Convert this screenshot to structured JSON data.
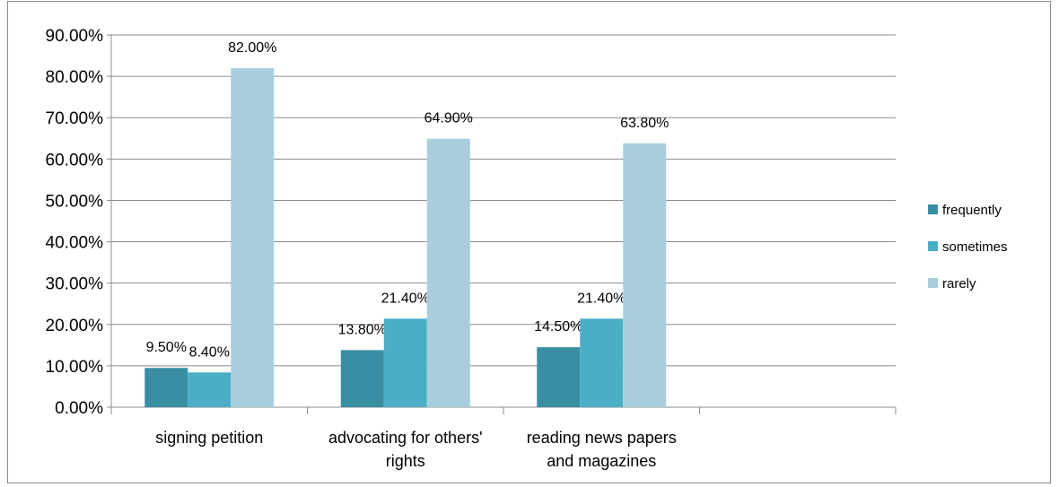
{
  "chart_data": {
    "type": "bar",
    "categories": [
      [
        "signing petition"
      ],
      [
        "advocating for others'",
        "rights"
      ],
      [
        "reading news papers",
        "and magazines"
      ],
      [
        ""
      ]
    ],
    "series": [
      {
        "name": "frequently",
        "color": "#3a8ea3",
        "values": [
          9.5,
          13.8,
          14.5,
          null
        ],
        "labels": [
          "9.50%",
          "13.80%",
          "14.50%",
          ""
        ]
      },
      {
        "name": "sometimes",
        "color": "#4baec6",
        "values": [
          8.4,
          21.4,
          21.4,
          null
        ],
        "labels": [
          "8.40%",
          "21.40%",
          "21.40%",
          ""
        ]
      },
      {
        "name": "rarely",
        "color": "#a8cedd",
        "values": [
          82.0,
          64.9,
          63.8,
          null
        ],
        "labels": [
          "82.00%",
          "64.90%",
          "63.80%",
          ""
        ]
      }
    ],
    "ylim": [
      0,
      90
    ],
    "y_ticks": [
      "0.00%",
      "10.00%",
      "20.00%",
      "30.00%",
      "40.00%",
      "50.00%",
      "60.00%",
      "70.00%",
      "80.00%",
      "90.00%"
    ],
    "grid": true,
    "legend_position": "right"
  }
}
